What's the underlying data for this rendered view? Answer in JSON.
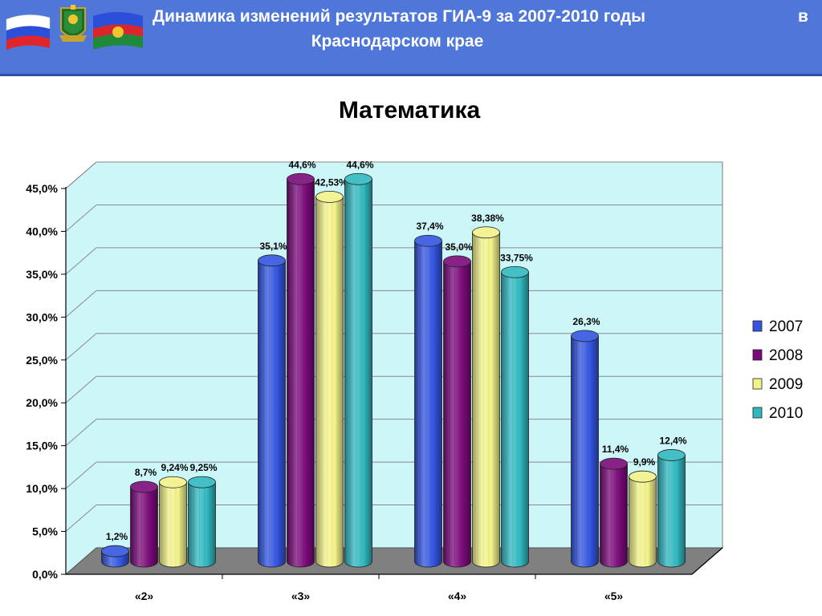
{
  "header": {
    "title_line1": "Динамика изменений результатов ГИА-9 за 2007-2010 годы",
    "title_line1_tail": "в",
    "title_line2": "Краснодарском крае"
  },
  "colors": {
    "header_bg": "#4f76d9",
    "wall": "#cdf6f8",
    "floor": "#808080",
    "series": [
      "#3355e0",
      "#7a0a7a",
      "#f2f28a",
      "#30b8c0"
    ]
  },
  "chart_data": {
    "type": "bar",
    "title": "Математика",
    "categories": [
      "«2»",
      "«3»",
      "«4»",
      "«5»"
    ],
    "ylim": [
      0,
      45
    ],
    "yticks": [
      "0,0%",
      "5,0%",
      "10,0%",
      "15,0%",
      "20,0%",
      "25,0%",
      "30,0%",
      "35,0%",
      "40,0%",
      "45,0%"
    ],
    "grid": true,
    "legend_position": "right",
    "series": [
      {
        "name": "2007",
        "values": [
          1.2,
          35.1,
          37.4,
          26.3
        ],
        "labels": [
          "1,2%",
          "35,1%",
          "37,4%",
          "26,3%"
        ]
      },
      {
        "name": "2008",
        "values": [
          8.7,
          44.6,
          35.0,
          11.4
        ],
        "labels": [
          "8,7%",
          "44,6%",
          "35,0%",
          "11,4%"
        ]
      },
      {
        "name": "2009",
        "values": [
          9.24,
          42.53,
          38.38,
          9.9
        ],
        "labels": [
          "9,24%",
          "42,53%",
          "38,38%",
          "9,9%"
        ]
      },
      {
        "name": "2010",
        "values": [
          9.25,
          44.6,
          33.75,
          12.4
        ],
        "labels": [
          "9,25%",
          "44,6%",
          "33,75%",
          "12,4%"
        ]
      }
    ]
  }
}
